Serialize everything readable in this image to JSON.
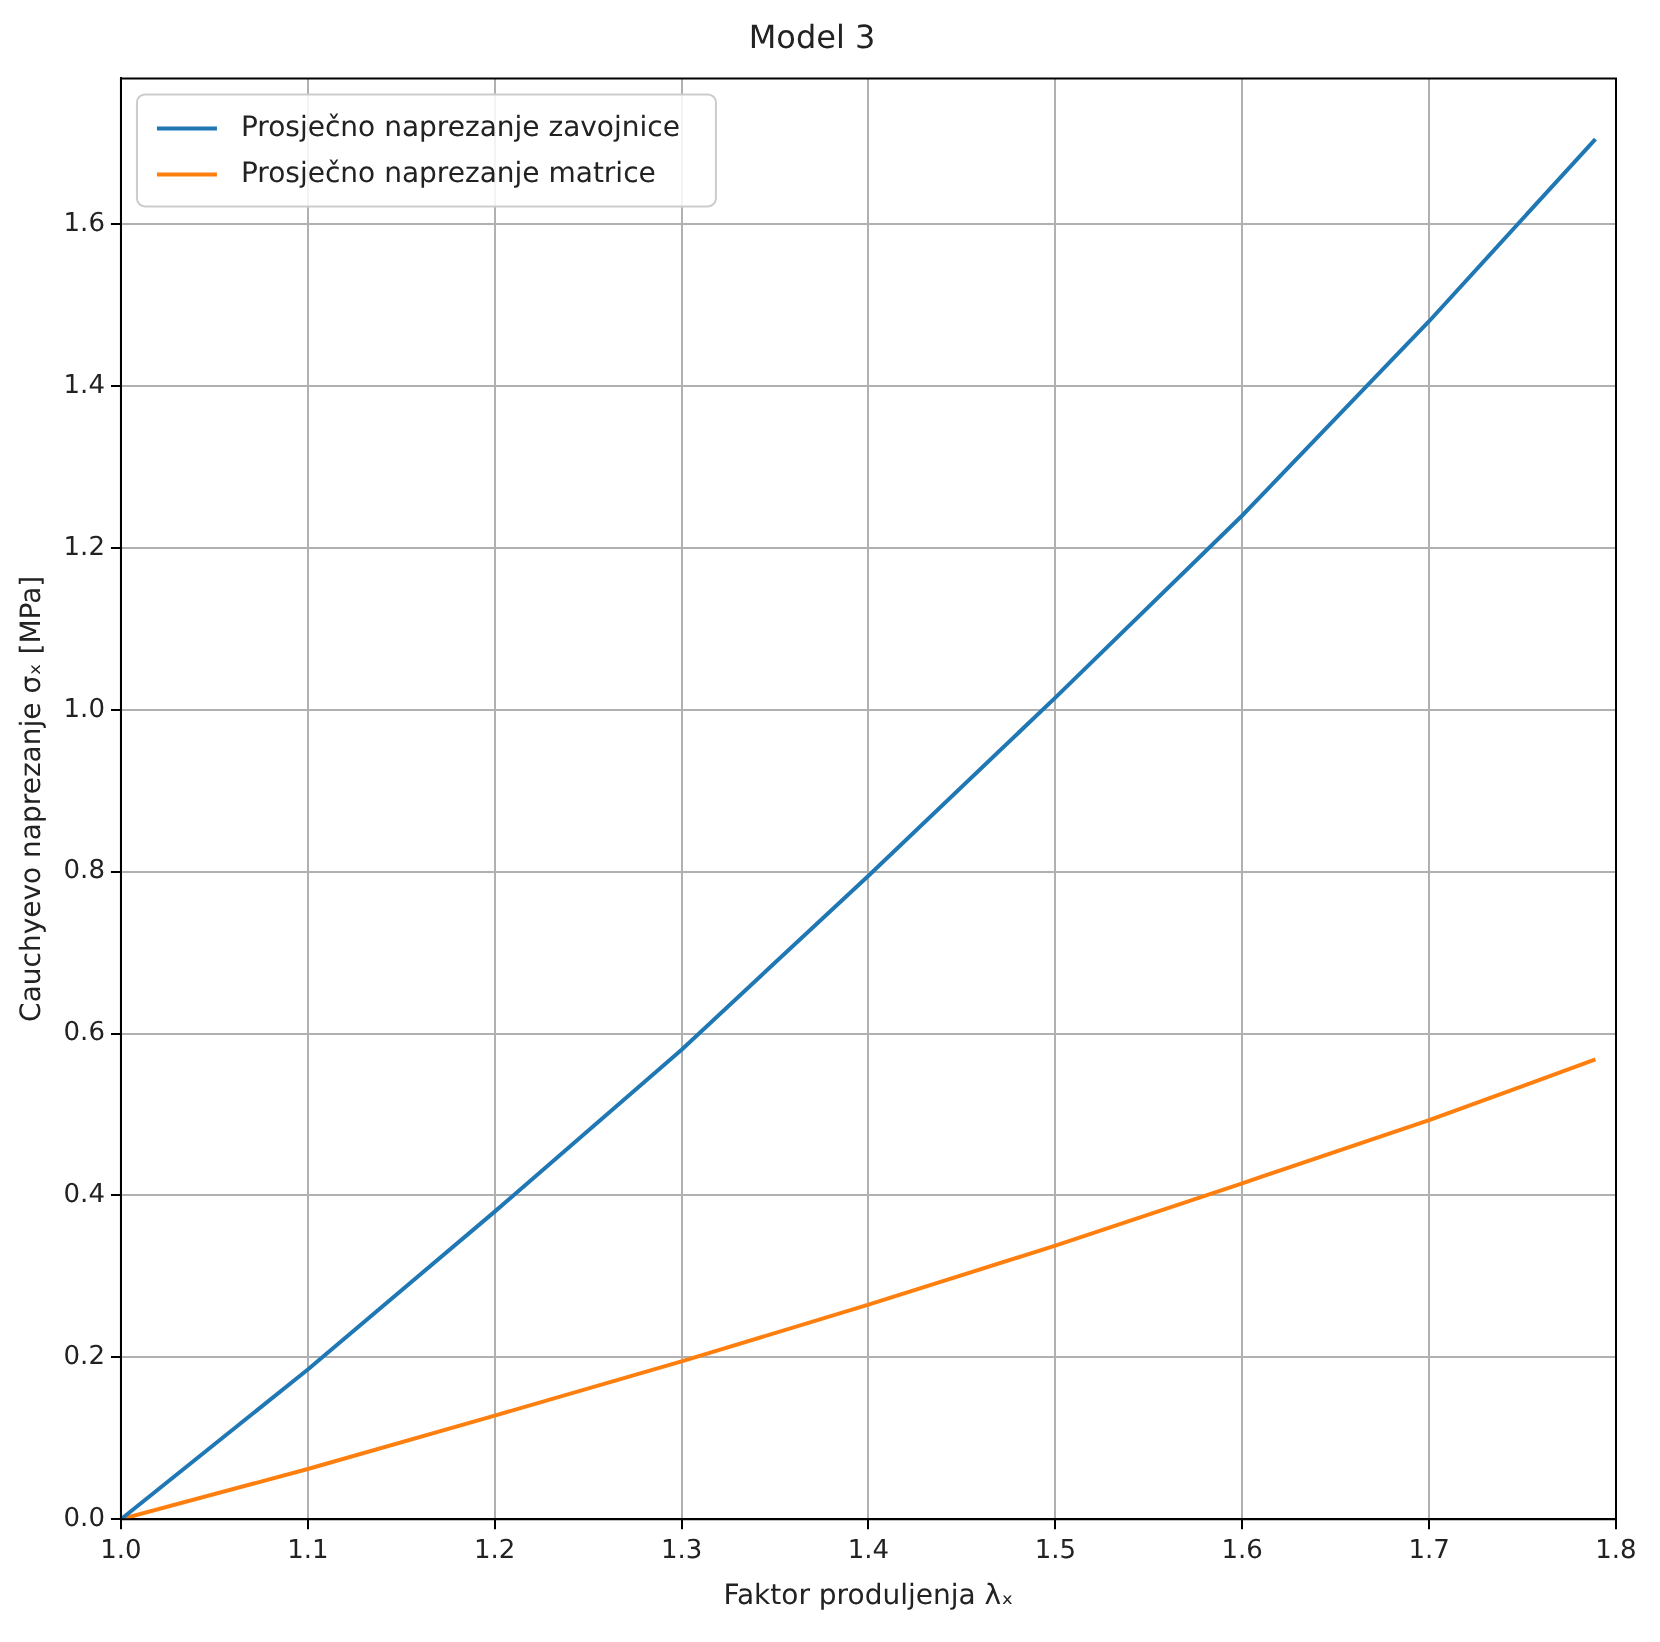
{
  "chart_data": {
    "type": "line",
    "title": "Model 3",
    "xlabel": "Faktor produljenja λₓ",
    "ylabel": "Cauchyevo naprezanje σₓ [MPa]",
    "xlim": [
      1.0,
      1.8
    ],
    "xticks": [
      {
        "value": 1.0,
        "label": "1.0"
      },
      {
        "value": 1.1,
        "label": "1.1"
      },
      {
        "value": 1.2,
        "label": "1.2"
      },
      {
        "value": 1.3,
        "label": "1.3"
      },
      {
        "value": 1.4,
        "label": "1.4"
      },
      {
        "value": 1.5,
        "label": "1.5"
      },
      {
        "value": 1.6,
        "label": "1.6"
      },
      {
        "value": 1.7,
        "label": "1.7"
      },
      {
        "value": 1.8,
        "label": "1.8"
      }
    ],
    "ylim": [
      0,
      1.78
    ],
    "yticks": [
      {
        "value": 0,
        "label": "0.0"
      },
      {
        "value": 0.2,
        "label": "0.2"
      },
      {
        "value": 0.4,
        "label": "0.4"
      },
      {
        "value": 0.6,
        "label": "0.6"
      },
      {
        "value": 0.8,
        "label": "0.8"
      },
      {
        "value": 1.0,
        "label": "1.0"
      },
      {
        "value": 1.2,
        "label": "1.2"
      },
      {
        "value": 1.4,
        "label": "1.4"
      },
      {
        "value": 1.6,
        "label": "1.6"
      }
    ],
    "x": [
      1.0,
      1.1,
      1.2,
      1.3,
      1.4,
      1.5,
      1.6,
      1.7,
      1.789
    ],
    "series": [
      {
        "name": "Prosječno naprezanje zavojnice",
        "color": "#1f77b4",
        "values": [
          0,
          0.185,
          0.38,
          0.58,
          0.795,
          1.015,
          1.24,
          1.48,
          1.705
        ]
      },
      {
        "name": "Prosječno naprezanje matrice",
        "color": "#ff7f0e",
        "values": [
          0,
          0.062,
          0.128,
          0.195,
          0.265,
          0.338,
          0.415,
          0.493,
          0.568
        ]
      }
    ],
    "grid": true,
    "legend": "top left",
    "marker": "none",
    "line_style": "solid"
  }
}
